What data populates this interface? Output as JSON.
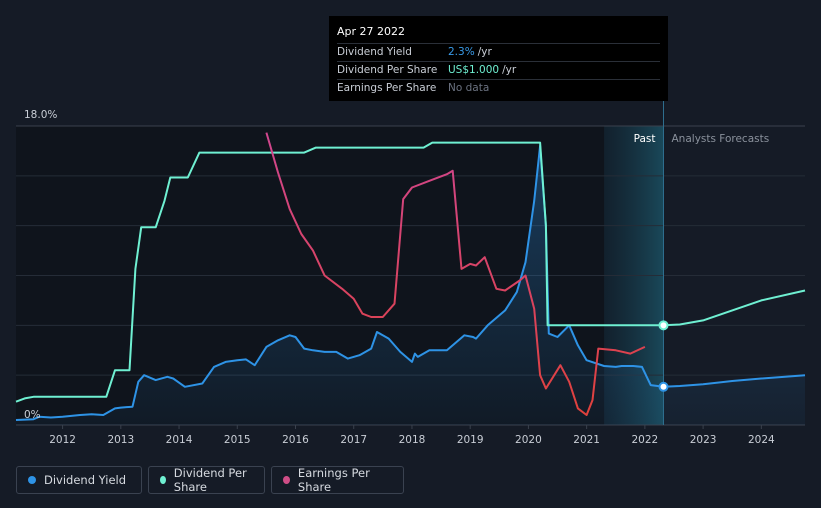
{
  "tooltip": {
    "date": "Apr 27 2022",
    "rows": [
      {
        "label": "Dividend Yield",
        "value": "2.3%",
        "unit": "/yr",
        "color": "#3a9be8"
      },
      {
        "label": "Dividend Per Share",
        "value": "US$1.000",
        "unit": "/yr",
        "color": "#6ff0d2"
      },
      {
        "label": "Earnings Per Share",
        "value": "No data",
        "unit": "",
        "color": "#6b7280"
      }
    ]
  },
  "legend": [
    {
      "label": "Dividend Yield",
      "color": "#2e93e6"
    },
    {
      "label": "Dividend Per Share",
      "color": "#6ff0d2"
    },
    {
      "label": "Earnings Per Share",
      "color": "#cf4d86"
    }
  ],
  "chart_data": {
    "type": "line",
    "y_axis_labels": {
      "top": "18.0%",
      "bottom": "0%"
    },
    "ylim": [
      0,
      18
    ],
    "xlim": [
      2011.2,
      2024.75
    ],
    "x_ticks": [
      2012,
      2013,
      2014,
      2015,
      2016,
      2017,
      2018,
      2019,
      2020,
      2021,
      2022,
      2023,
      2024
    ],
    "grid": true,
    "region_labels": {
      "past": "Past",
      "forecast": "Analysts Forecasts"
    },
    "past_band": [
      2021.3,
      2022.32
    ],
    "cursor_x": 2022.32,
    "series": [
      {
        "name": "Dividend Yield",
        "key": "yield",
        "color": "#2e93e6",
        "fill": true,
        "points": [
          [
            2011.2,
            0.3
          ],
          [
            2011.5,
            0.35
          ],
          [
            2011.6,
            0.5
          ],
          [
            2011.8,
            0.45
          ],
          [
            2012.0,
            0.5
          ],
          [
            2012.3,
            0.6
          ],
          [
            2012.5,
            0.65
          ],
          [
            2012.7,
            0.6
          ],
          [
            2012.9,
            1.0
          ],
          [
            2013.0,
            1.05
          ],
          [
            2013.2,
            1.1
          ],
          [
            2013.3,
            2.6
          ],
          [
            2013.4,
            3.0
          ],
          [
            2013.6,
            2.7
          ],
          [
            2013.8,
            2.9
          ],
          [
            2013.9,
            2.8
          ],
          [
            2014.1,
            2.3
          ],
          [
            2014.4,
            2.5
          ],
          [
            2014.6,
            3.5
          ],
          [
            2014.8,
            3.8
          ],
          [
            2015.0,
            3.9
          ],
          [
            2015.15,
            3.95
          ],
          [
            2015.3,
            3.6
          ],
          [
            2015.5,
            4.7
          ],
          [
            2015.7,
            5.1
          ],
          [
            2015.9,
            5.4
          ],
          [
            2016.0,
            5.3
          ],
          [
            2016.15,
            4.6
          ],
          [
            2016.3,
            4.5
          ],
          [
            2016.5,
            4.4
          ],
          [
            2016.7,
            4.4
          ],
          [
            2016.9,
            4.0
          ],
          [
            2017.1,
            4.2
          ],
          [
            2017.3,
            4.6
          ],
          [
            2017.4,
            5.6
          ],
          [
            2017.6,
            5.2
          ],
          [
            2017.8,
            4.4
          ],
          [
            2018.0,
            3.8
          ],
          [
            2018.05,
            4.3
          ],
          [
            2018.1,
            4.1
          ],
          [
            2018.3,
            4.5
          ],
          [
            2018.6,
            4.5
          ],
          [
            2018.9,
            5.4
          ],
          [
            2019.05,
            5.3
          ],
          [
            2019.1,
            5.2
          ],
          [
            2019.3,
            6.0
          ],
          [
            2019.6,
            6.9
          ],
          [
            2019.8,
            8.0
          ],
          [
            2019.95,
            9.8
          ],
          [
            2020.1,
            13.5
          ],
          [
            2020.2,
            16.8
          ],
          [
            2020.3,
            12.0
          ],
          [
            2020.35,
            5.5
          ],
          [
            2020.5,
            5.3
          ],
          [
            2020.7,
            6.0
          ],
          [
            2020.85,
            4.8
          ],
          [
            2021.0,
            3.9
          ],
          [
            2021.3,
            3.55
          ],
          [
            2021.5,
            3.5
          ],
          [
            2021.6,
            3.55
          ],
          [
            2021.8,
            3.55
          ],
          [
            2021.95,
            3.5
          ],
          [
            2022.1,
            2.4
          ],
          [
            2022.32,
            2.3
          ],
          [
            2022.6,
            2.35
          ],
          [
            2023.0,
            2.45
          ],
          [
            2023.5,
            2.65
          ],
          [
            2024.0,
            2.8
          ],
          [
            2024.75,
            3.0
          ]
        ]
      },
      {
        "name": "Dividend Per Share",
        "key": "dps",
        "color": "#6ff0d2",
        "fill": false,
        "points": [
          [
            2011.2,
            1.4
          ],
          [
            2011.35,
            1.6
          ],
          [
            2011.5,
            1.7
          ],
          [
            2012.5,
            1.7
          ],
          [
            2012.75,
            1.7
          ],
          [
            2012.9,
            3.3
          ],
          [
            2013.15,
            3.3
          ],
          [
            2013.25,
            9.4
          ],
          [
            2013.35,
            11.9
          ],
          [
            2013.6,
            11.9
          ],
          [
            2013.75,
            13.5
          ],
          [
            2013.85,
            14.9
          ],
          [
            2014.15,
            14.9
          ],
          [
            2014.35,
            16.4
          ],
          [
            2016.15,
            16.4
          ],
          [
            2016.35,
            16.7
          ],
          [
            2018.2,
            16.7
          ],
          [
            2018.35,
            17.0
          ],
          [
            2020.2,
            17.0
          ],
          [
            2020.3,
            12.0
          ],
          [
            2020.33,
            6.0
          ],
          [
            2022.32,
            6.0
          ],
          [
            2022.6,
            6.05
          ],
          [
            2023.0,
            6.3
          ],
          [
            2023.5,
            6.9
          ],
          [
            2024.0,
            7.5
          ],
          [
            2024.75,
            8.1
          ]
        ]
      },
      {
        "name": "Earnings Per Share",
        "key": "eps",
        "color": "#cf4d86",
        "points": [
          [
            2015.5,
            17.6
          ],
          [
            2015.7,
            15.2
          ],
          [
            2015.9,
            13.0
          ],
          [
            2016.1,
            11.5
          ],
          [
            2016.3,
            10.5
          ],
          [
            2016.5,
            9.0
          ],
          [
            2016.8,
            8.2
          ],
          [
            2017.0,
            7.6
          ],
          [
            2017.15,
            6.7
          ],
          [
            2017.3,
            6.5
          ],
          [
            2017.5,
            6.5
          ],
          [
            2017.7,
            7.3
          ],
          [
            2017.85,
            13.6
          ],
          [
            2018.0,
            14.3
          ],
          [
            2018.3,
            14.7
          ],
          [
            2018.6,
            15.1
          ],
          [
            2018.7,
            15.3
          ],
          [
            2018.85,
            9.4
          ],
          [
            2019.0,
            9.7
          ],
          [
            2019.1,
            9.6
          ],
          [
            2019.25,
            10.1
          ],
          [
            2019.45,
            8.2
          ],
          [
            2019.6,
            8.1
          ],
          [
            2019.85,
            8.7
          ],
          [
            2019.95,
            9.0
          ],
          [
            2020.1,
            7.0
          ],
          [
            2020.2,
            3.0
          ],
          [
            2020.3,
            2.2
          ],
          [
            2020.55,
            3.6
          ],
          [
            2020.7,
            2.6
          ],
          [
            2020.85,
            1.0
          ],
          [
            2021.0,
            0.6
          ],
          [
            2021.1,
            1.5
          ],
          [
            2021.2,
            4.6
          ],
          [
            2021.5,
            4.5
          ],
          [
            2021.75,
            4.3
          ],
          [
            2022.0,
            4.7
          ]
        ]
      }
    ]
  }
}
